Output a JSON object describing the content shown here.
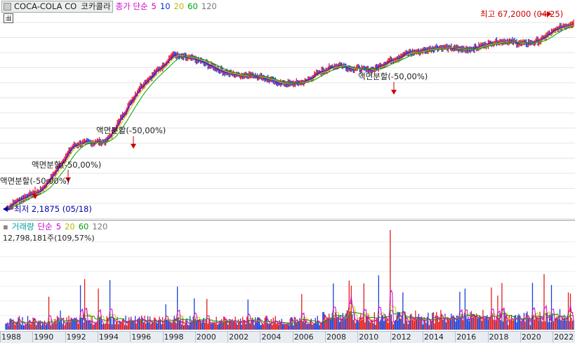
{
  "header": {
    "ticker": "COCA-COLA CO",
    "name_kr": "코카콜라",
    "indicator_label": "종가 단순",
    "ma_periods": [
      "5",
      "10",
      "20",
      "60",
      "120"
    ],
    "ma_colors": [
      "#cc00cc",
      "#0033cc",
      "#cccc00",
      "#00a000",
      "#777777"
    ]
  },
  "annotations": {
    "high": "최고 67,2000 (04/25)",
    "low": "최저 2,1875 (05/18)",
    "splits": [
      "액면분할(-50,00%)",
      "액면분할(-50,00%)",
      "액면분할(-50,00%)",
      "액면분할(-50,00%)"
    ]
  },
  "volume": {
    "label": "거래량",
    "indicator_label": "단순",
    "ma_periods": [
      "5",
      "20",
      "60",
      "120"
    ],
    "ma_colors": [
      "#cc00cc",
      "#cccc00",
      "#00a000",
      "#777777"
    ],
    "value": "12,798,181주(109,57%)"
  },
  "colors": {
    "up": "#e41b1b",
    "down": "#1a3fd6",
    "high_text": "#cc0000",
    "low_text": "#0000aa"
  },
  "chart_data": {
    "type": "line",
    "x": [
      "1988",
      "1990",
      "1992",
      "1994",
      "1996",
      "1998",
      "2000",
      "2002",
      "2004",
      "2006",
      "2008",
      "2010",
      "2012",
      "2014",
      "2016",
      "2018",
      "2020",
      "2022"
    ],
    "series": [
      {
        "values": [
          2.19,
          3.0,
          6.5,
          7.5,
          18,
          35,
          28,
          24,
          21,
          21,
          29,
          25,
          36,
          37,
          39,
          42,
          44,
          60
        ]
      }
    ],
    "high": 67.2,
    "low": 2.1875
  }
}
